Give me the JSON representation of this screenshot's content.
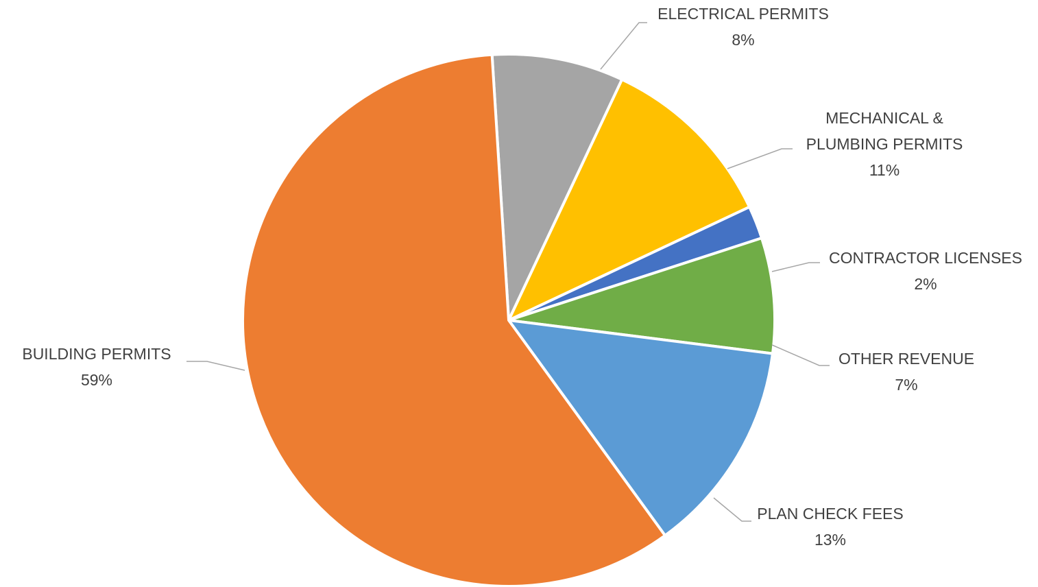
{
  "chart_data": {
    "type": "pie",
    "start_angle_deg": -3.6,
    "direction": "clockwise",
    "slices": [
      {
        "name": "ELECTRICAL PERMITS",
        "name_lines": [
          "ELECTRICAL PERMITS"
        ],
        "value": 8,
        "label": "8%",
        "color": "#a5a5a5"
      },
      {
        "name": "MECHANICAL & PLUMBING PERMITS",
        "name_lines": [
          "MECHANICAL &",
          "PLUMBING PERMITS"
        ],
        "value": 11,
        "label": "11%",
        "color": "#ffc000"
      },
      {
        "name": "CONTRACTOR LICENSES",
        "name_lines": [
          "CONTRACTOR LICENSES"
        ],
        "value": 2,
        "label": "2%",
        "color": "#4472c4"
      },
      {
        "name": "OTHER REVENUE",
        "name_lines": [
          "OTHER REVENUE"
        ],
        "value": 7,
        "label": "7%",
        "color": "#70ad47"
      },
      {
        "name": "PLAN CHECK FEES",
        "name_lines": [
          "PLAN CHECK FEES"
        ],
        "value": 13,
        "label": "13%",
        "color": "#5b9bd5"
      },
      {
        "name": "BUILDING PERMITS",
        "name_lines": [
          "BUILDING PERMITS"
        ],
        "value": 59,
        "label": "59%",
        "color": "#ed7d31"
      }
    ],
    "labels": "outside with leader lines",
    "legend": "none"
  }
}
